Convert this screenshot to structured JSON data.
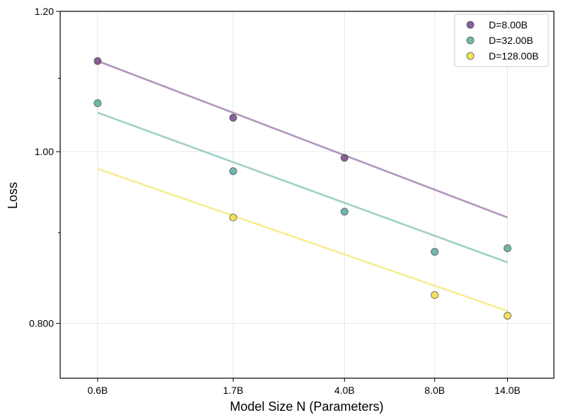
{
  "chart_data": {
    "type": "scatter",
    "title": "",
    "xlabel": "Model Size N (Parameters)",
    "ylabel": "Loss",
    "x_scale": "log",
    "y_scale": "log",
    "xlim": [
      0.45,
      20.0
    ],
    "ylim": [
      0.745,
      1.2
    ],
    "x_ticks": [
      {
        "value": 0.6,
        "label": "0.6B"
      },
      {
        "value": 1.7,
        "label": "1.7B"
      },
      {
        "value": 4.0,
        "label": "4.0B"
      },
      {
        "value": 8.0,
        "label": "8.0B"
      },
      {
        "value": 14.0,
        "label": "14.0B"
      }
    ],
    "y_major_ticks": [
      {
        "value": 0.8,
        "label": "0.800"
      },
      {
        "value": 1.0,
        "label": "1.00"
      },
      {
        "value": 1.2,
        "label": "1.20"
      }
    ],
    "y_minor_ticks": [
      0.9,
      1.1
    ],
    "grid": true,
    "legend_position": "top-right",
    "series": [
      {
        "name": "D=8.00B",
        "color": "#7b4f8e",
        "points": [
          {
            "x": 0.6,
            "y": 1.125
          },
          {
            "x": 1.7,
            "y": 1.045
          },
          {
            "x": 4.0,
            "y": 0.992
          }
        ],
        "fit": [
          {
            "x": 0.6,
            "y": 1.125
          },
          {
            "x": 14.0,
            "y": 0.918
          }
        ]
      },
      {
        "name": "D=32.00B",
        "color": "#5eb0a4",
        "points": [
          {
            "x": 0.6,
            "y": 1.065
          },
          {
            "x": 1.7,
            "y": 0.975
          },
          {
            "x": 4.0,
            "y": 0.925
          },
          {
            "x": 8.0,
            "y": 0.878
          },
          {
            "x": 14.0,
            "y": 0.882
          }
        ],
        "fit": [
          {
            "x": 0.6,
            "y": 1.052
          },
          {
            "x": 14.0,
            "y": 0.866
          }
        ]
      },
      {
        "name": "D=128.00B",
        "color": "#f0e04a",
        "points": [
          {
            "x": 1.7,
            "y": 0.918
          },
          {
            "x": 8.0,
            "y": 0.83
          },
          {
            "x": 14.0,
            "y": 0.808
          }
        ],
        "fit": [
          {
            "x": 0.6,
            "y": 0.978
          },
          {
            "x": 14.0,
            "y": 0.813
          }
        ]
      }
    ]
  }
}
